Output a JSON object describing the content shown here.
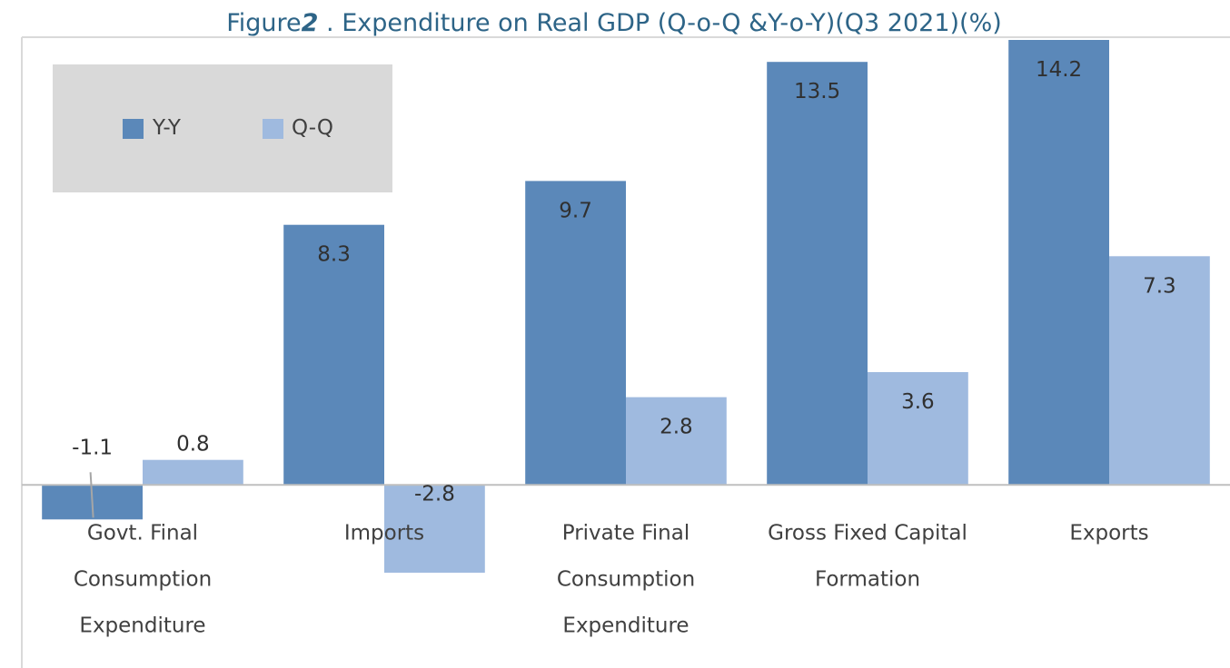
{
  "chart_data": {
    "type": "bar",
    "title_prefix": "Figure",
    "title_number": "2",
    "title_rest": " . Expenditure on Real GDP (Q-o-Q &Y-o-Y)(Q3 2021)(%)",
    "categories": [
      [
        "Govt. Final",
        "Consumption",
        "Expenditure"
      ],
      [
        "Imports"
      ],
      [
        "Private Final",
        "Consumption",
        "Expenditure"
      ],
      [
        "Gross Fixed Capital",
        "Formation"
      ],
      [
        "Exports"
      ]
    ],
    "series": [
      {
        "name": "Y-Y",
        "color": "#5b88b9",
        "values": [
          -1.1,
          8.3,
          9.7,
          13.5,
          14.2
        ],
        "labels": [
          "-1.1",
          "8.3",
          "9.7",
          "13.5",
          "14.2"
        ]
      },
      {
        "name": "Q-Q",
        "color": "#9fbadf",
        "values": [
          0.8,
          -2.8,
          2.8,
          3.6,
          7.3
        ],
        "labels": [
          "0.8",
          "-2.8",
          "2.8",
          "3.6",
          "7.3"
        ]
      }
    ],
    "ylim": [
      -2.8,
      14.2
    ],
    "legend_position": "top-left",
    "grid": false,
    "legend_background": "#d9d9d9",
    "axis_color": "#bfbfbf"
  }
}
